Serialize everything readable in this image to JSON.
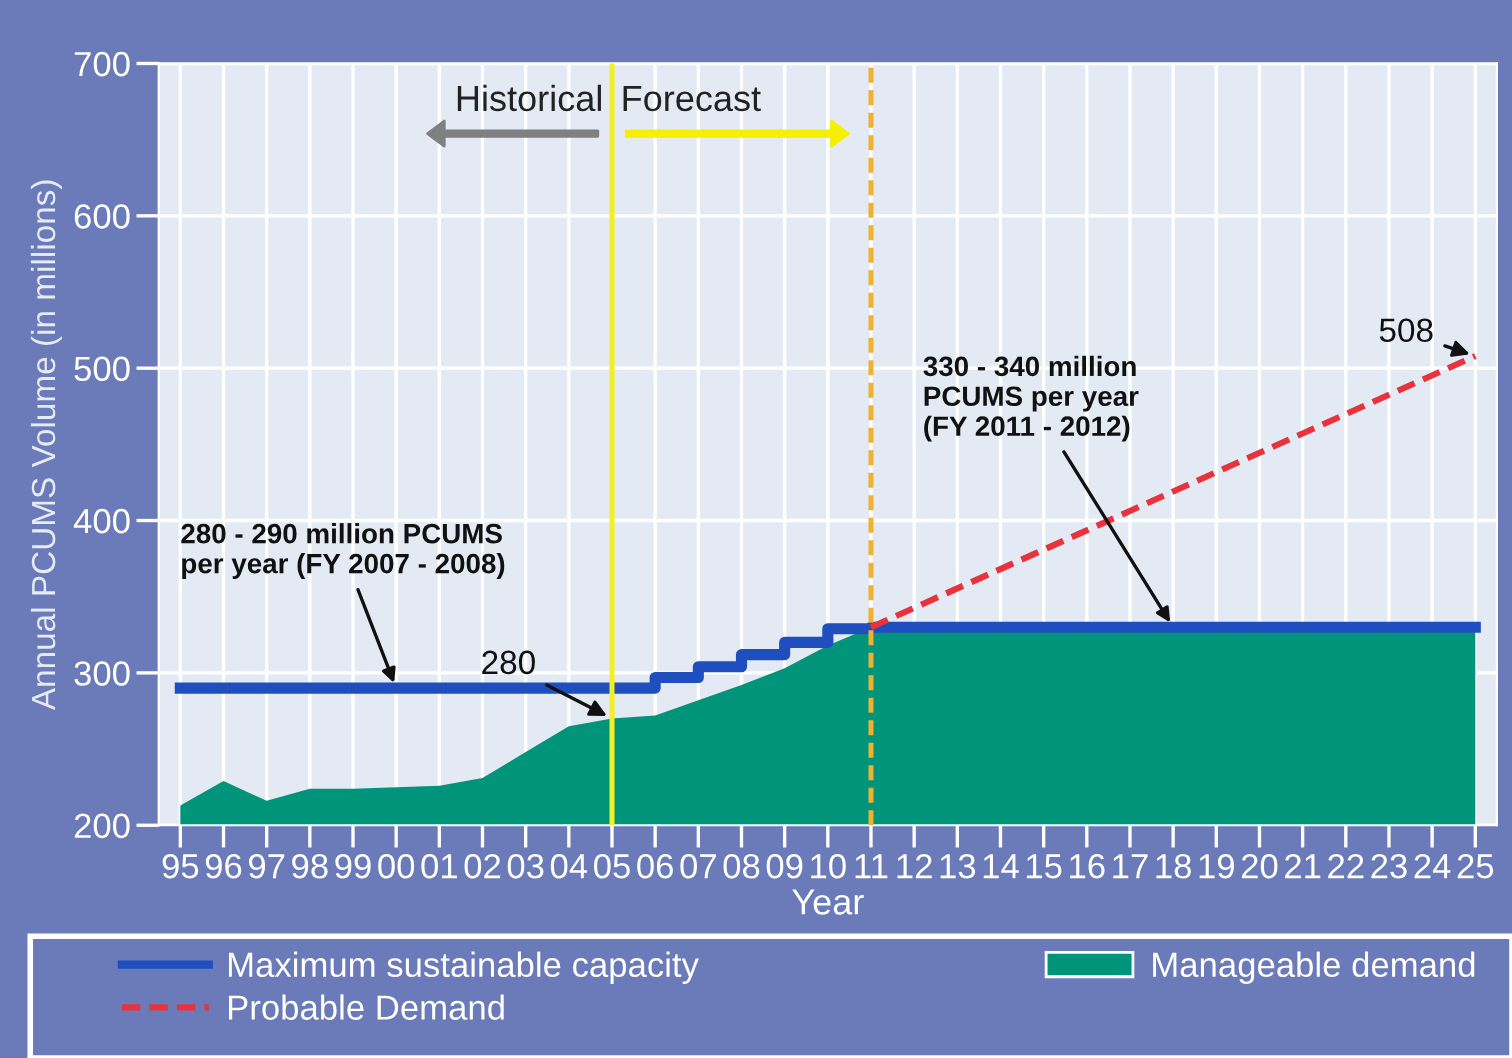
{
  "chart_data": {
    "type": "area",
    "xlabel": "Year",
    "ylabel": "Annual PCUMS Volume (in millions)",
    "categories": [
      "95",
      "96",
      "97",
      "98",
      "99",
      "00",
      "01",
      "02",
      "03",
      "04",
      "05",
      "06",
      "07",
      "08",
      "09",
      "10",
      "11",
      "12",
      "13",
      "14",
      "15",
      "16",
      "17",
      "18",
      "19",
      "20",
      "21",
      "22",
      "23",
      "24",
      "25"
    ],
    "series": [
      {
        "name": "Manageable demand",
        "color": "#00957a",
        "values": [
          213,
          229,
          216,
          224,
          224,
          225,
          226,
          231,
          248,
          265,
          270,
          272,
          282,
          292,
          303,
          318,
          330,
          330,
          330,
          330,
          330,
          330,
          330,
          330,
          330,
          330,
          330,
          330,
          330,
          330,
          330
        ]
      },
      {
        "name": "Maximum sustainable capacity",
        "type": "step",
        "color": "#1f4fbf",
        "values": [
          290,
          290,
          290,
          290,
          290,
          290,
          290,
          290,
          290,
          290,
          290,
          297,
          304,
          312,
          320,
          329,
          330,
          330,
          330,
          330,
          330,
          330,
          330,
          330,
          330,
          330,
          330,
          330,
          330,
          330,
          330
        ]
      },
      {
        "name": "Probable Demand",
        "type": "line",
        "line_style": "dashed",
        "color": "#e8323c",
        "values": [
          null,
          null,
          null,
          null,
          null,
          null,
          null,
          null,
          null,
          null,
          null,
          null,
          null,
          null,
          null,
          null,
          330,
          null,
          null,
          null,
          null,
          null,
          null,
          null,
          null,
          null,
          null,
          null,
          null,
          null,
          508
        ]
      }
    ],
    "ylim": [
      200,
      700
    ],
    "yticks": [
      200,
      300,
      400,
      500,
      600,
      700
    ],
    "ref_lines": [
      {
        "axis": "x",
        "value": "05",
        "color": "#f2f020",
        "line_style": "solid"
      },
      {
        "axis": "x",
        "value": "11",
        "color": "#f0b030",
        "line_style": "dashed"
      }
    ],
    "annotations": [
      "Historical",
      "Forecast",
      {
        "text": "280",
        "x": "05",
        "y": 270
      },
      {
        "text": "280 - 290 million PCUMS\nper year (FY 2007 - 2008)",
        "x": "00",
        "y": 290
      },
      {
        "text": "330 - 340 million\nPCUMS per year\n(FY 2011 - 2012)",
        "x": "18",
        "y": 330
      },
      {
        "text": "508",
        "x": "25",
        "y": 508
      }
    ],
    "grid": true,
    "legend": "bottom"
  }
}
